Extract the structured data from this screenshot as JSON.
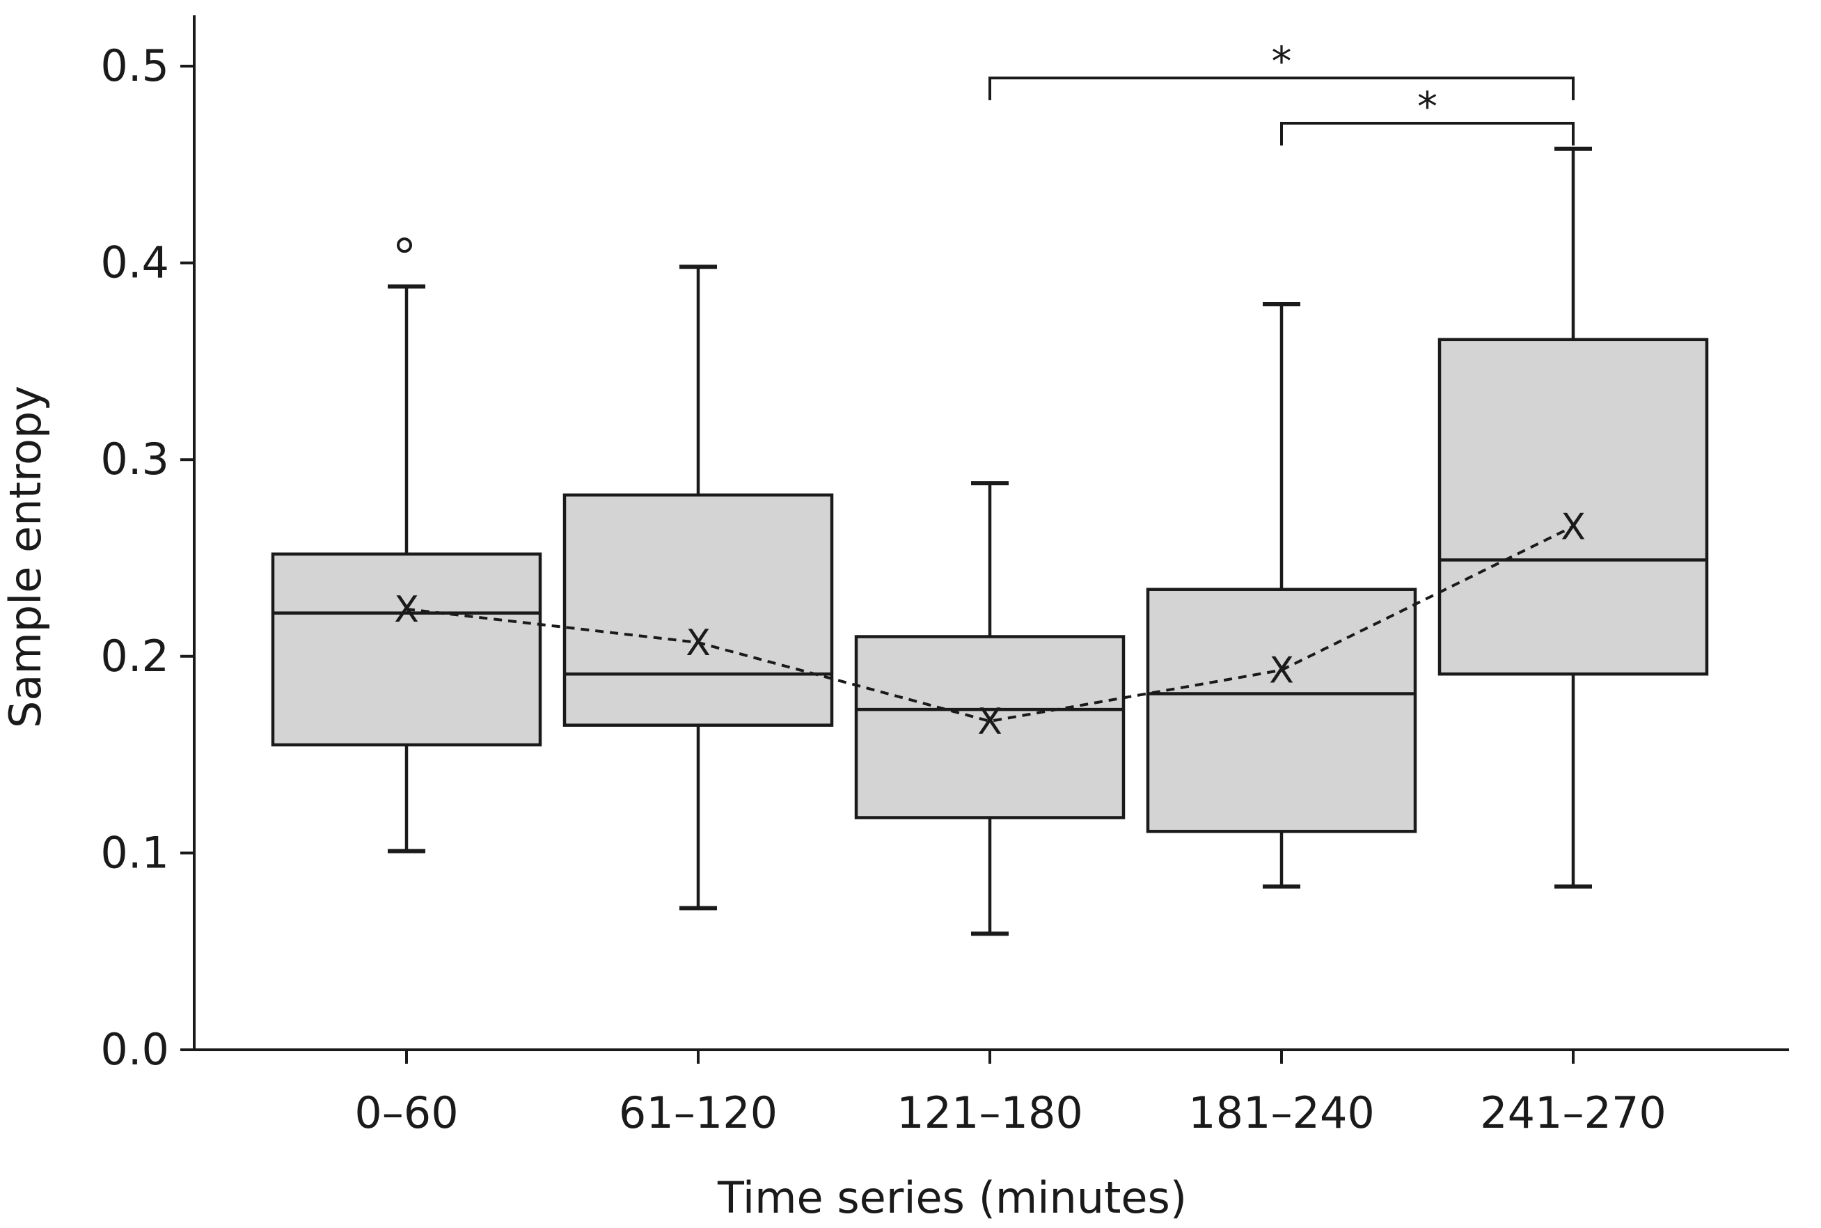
{
  "chart_data": {
    "type": "boxplot",
    "title": "",
    "xlabel": "Time series (minutes)",
    "ylabel": "Sample entropy",
    "ylim": [
      0.0,
      0.52
    ],
    "yticks": [
      0.0,
      0.1,
      0.2,
      0.3,
      0.4,
      0.5
    ],
    "ytick_labels": [
      "0.0",
      "0.1",
      "0.2",
      "0.3",
      "0.4",
      "0.5"
    ],
    "categories": [
      "0–60",
      "61–120",
      "121–180",
      "181–240",
      "241–270"
    ],
    "boxes": [
      {
        "category": "0–60",
        "whisker_low": 0.101,
        "q1": 0.155,
        "median": 0.222,
        "q3": 0.252,
        "whisker_high": 0.388,
        "mean": 0.224,
        "outliers": [
          0.409
        ]
      },
      {
        "category": "61–120",
        "whisker_low": 0.072,
        "q1": 0.165,
        "median": 0.191,
        "q3": 0.282,
        "whisker_high": 0.398,
        "mean": 0.207,
        "outliers": []
      },
      {
        "category": "121–180",
        "whisker_low": 0.059,
        "q1": 0.118,
        "median": 0.173,
        "q3": 0.21,
        "whisker_high": 0.288,
        "mean": 0.167,
        "outliers": []
      },
      {
        "category": "181–240",
        "whisker_low": 0.083,
        "q1": 0.111,
        "median": 0.181,
        "q3": 0.234,
        "whisker_high": 0.379,
        "mean": 0.193,
        "outliers": []
      },
      {
        "category": "241–270",
        "whisker_low": 0.083,
        "q1": 0.191,
        "median": 0.249,
        "q3": 0.361,
        "whisker_high": 0.458,
        "mean": 0.266,
        "outliers": []
      }
    ],
    "mean_symbol": "X",
    "mean_line": "dashed",
    "significance": [
      {
        "from": "121–180",
        "to": "241–270",
        "level": 0.494,
        "label": "*"
      },
      {
        "from": "181–240",
        "to": "241–270",
        "level": 0.471,
        "label": "*"
      }
    ],
    "grid": false,
    "legend": "none"
  }
}
